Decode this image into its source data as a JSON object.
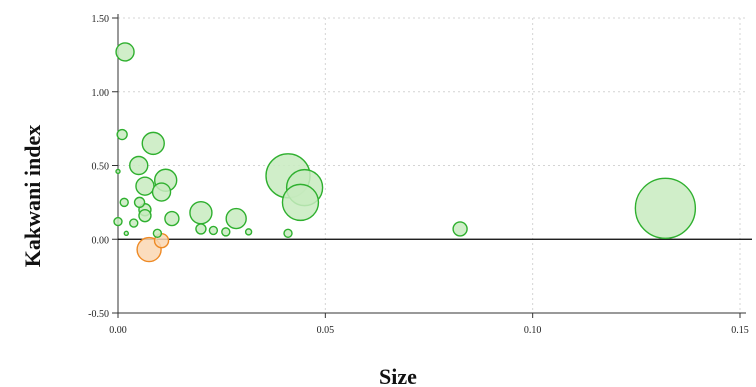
{
  "chart_data": {
    "type": "scatter",
    "title": "",
    "xlabel": "Size",
    "ylabel": "Kakwani index",
    "xlim": [
      0,
      0.15
    ],
    "ylim": [
      -0.5,
      1.5
    ],
    "xticks": [
      0.0,
      0.05,
      0.1,
      0.15
    ],
    "xtick_labels": [
      "0.00",
      "0.05",
      "0.10",
      "0.15"
    ],
    "yticks": [
      -0.5,
      0.0,
      0.5,
      1.0,
      1.5
    ],
    "ytick_labels": [
      "-0.50",
      "0.00",
      "0.50",
      "1.00",
      "1.50"
    ],
    "grid": true,
    "reference_line_y": 0,
    "colors": {
      "positive_fill": "#c8ebc0",
      "positive_stroke": "#2fb02f",
      "negative_fill": "#fad7b3",
      "negative_stroke": "#ee8a25"
    },
    "points": [
      {
        "x": 0.0017,
        "y": 1.27
      },
      {
        "x": 0.001,
        "y": 0.71
      },
      {
        "x": 0.0085,
        "y": 0.65
      },
      {
        "x": 0.005,
        "y": 0.5
      },
      {
        "x": 0.0,
        "y": 0.46
      },
      {
        "x": 0.0115,
        "y": 0.4
      },
      {
        "x": 0.0065,
        "y": 0.36
      },
      {
        "x": 0.0105,
        "y": 0.32
      },
      {
        "x": 0.0052,
        "y": 0.25
      },
      {
        "x": 0.0015,
        "y": 0.25
      },
      {
        "x": 0.0065,
        "y": 0.2
      },
      {
        "x": 0.02,
        "y": 0.18
      },
      {
        "x": 0.0065,
        "y": 0.16
      },
      {
        "x": 0.013,
        "y": 0.14
      },
      {
        "x": 0.0285,
        "y": 0.14
      },
      {
        "x": 0.0,
        "y": 0.12
      },
      {
        "x": 0.0038,
        "y": 0.11
      },
      {
        "x": 0.02,
        "y": 0.07
      },
      {
        "x": 0.023,
        "y": 0.06
      },
      {
        "x": 0.026,
        "y": 0.05
      },
      {
        "x": 0.0315,
        "y": 0.05
      },
      {
        "x": 0.002,
        "y": 0.04
      },
      {
        "x": 0.0095,
        "y": 0.04
      },
      {
        "x": 0.041,
        "y": 0.43
      },
      {
        "x": 0.045,
        "y": 0.35
      },
      {
        "x": 0.044,
        "y": 0.25
      },
      {
        "x": 0.041,
        "y": 0.04
      },
      {
        "x": 0.0825,
        "y": 0.07
      },
      {
        "x": 0.132,
        "y": 0.21
      },
      {
        "x": 0.0105,
        "y": -0.01
      },
      {
        "x": 0.0075,
        "y": -0.07
      }
    ],
    "sizes": [
      9,
      5,
      11,
      9,
      2,
      11,
      9,
      9,
      5,
      4,
      6,
      11,
      6,
      7,
      10,
      4,
      4,
      5,
      4,
      4,
      3,
      2,
      4,
      22,
      18,
      18,
      4,
      7,
      30,
      7,
      12
    ]
  }
}
